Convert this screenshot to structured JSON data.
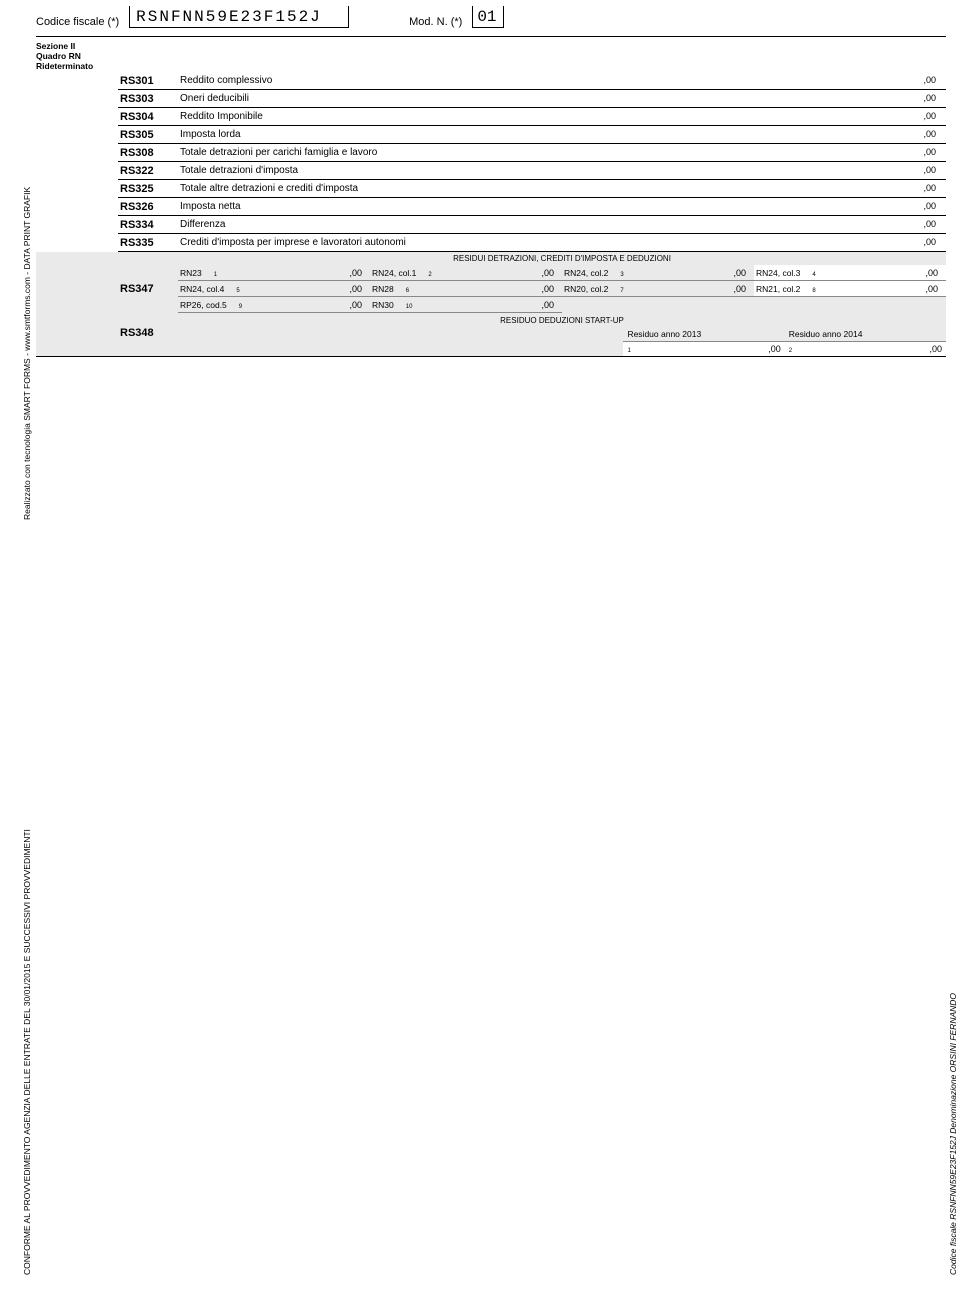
{
  "header": {
    "cf_label": "Codice fiscale (*)",
    "cf_value": "RSNFNN59E23F152J",
    "modn_label": "Mod. N. (*)",
    "modn_value": "01"
  },
  "section": {
    "line1": "Sezione II",
    "line2": "Quadro RN",
    "line3": "Rideterminato"
  },
  "rows": [
    {
      "code": "RS301",
      "desc": "Reddito complessivo",
      "val": ",00"
    },
    {
      "code": "RS303",
      "desc": "Oneri deducibili",
      "val": ",00"
    },
    {
      "code": "RS304",
      "desc": "Reddito Imponibile",
      "val": ",00"
    },
    {
      "code": "RS305",
      "desc": "Imposta lorda",
      "val": ",00"
    },
    {
      "code": "RS308",
      "desc": "Totale detrazioni per carichi famiglia e lavoro",
      "val": ",00"
    },
    {
      "code": "RS322",
      "desc": "Totale detrazioni d'imposta",
      "val": ",00"
    },
    {
      "code": "RS325",
      "desc": "Totale altre detrazioni e crediti d'imposta",
      "val": ",00"
    },
    {
      "code": "RS326",
      "desc": "Imposta netta",
      "val": ",00"
    },
    {
      "code": "RS334",
      "desc": "Differenza",
      "val": ",00"
    },
    {
      "code": "RS335",
      "desc": "Crediti d'imposta per imprese e lavoratori autonomi",
      "val": ",00"
    }
  ],
  "rs347": {
    "code": "RS347",
    "header": "RESIDUI DETRAZIONI, CREDITI D'IMPOSTA E DEDUZIONI",
    "cells": [
      {
        "lbl": "RN23",
        "sup": "1",
        "v": ",00"
      },
      {
        "lbl": "RN24, col.1",
        "sup": "2",
        "v": ",00"
      },
      {
        "lbl": "RN24, col.2",
        "sup": "3",
        "v": ",00"
      },
      {
        "lbl": "RN24, col.3",
        "sup": "4",
        "v": ",00"
      },
      {
        "lbl": "RN24, col.4",
        "sup": "5",
        "v": ",00"
      },
      {
        "lbl": "RN28",
        "sup": "6",
        "v": ",00"
      },
      {
        "lbl": "RN20, col.2",
        "sup": "7",
        "v": ",00"
      },
      {
        "lbl": "RN21, col.2",
        "sup": "8",
        "v": ",00"
      },
      {
        "lbl": "RP26, cod.5",
        "sup": "9",
        "v": ",00"
      },
      {
        "lbl": "RN30",
        "sup": "10",
        "v": ",00"
      }
    ]
  },
  "rs348": {
    "code": "RS348",
    "header": "RESIDUO DEDUZIONI START-UP",
    "lab1": "Residuo anno 2013",
    "lab2": "Residuo anno 2014",
    "sup1": "1",
    "sup2": "2",
    "v1": ",00",
    "v2": ",00"
  },
  "sidetext": {
    "left_top": "Realizzato con tecnologia SMART FORMS - www.smtforms.com - DATA PRINT GRAFIK",
    "left_bottom": "CONFORME AL PROVVEDIMENTO AGENZIA DELLE ENTRATE DEL 30/01/2015 E SUCCESSIVI PROVVEDIMENTI",
    "right": "Codice fiscale RSNFNN59E23F152J Denominazione ORSINI FERNANDO"
  },
  "colors": {
    "bg": "#ffffff",
    "shade": "#eaeaea",
    "border": "#000000",
    "light_border": "#888888"
  }
}
